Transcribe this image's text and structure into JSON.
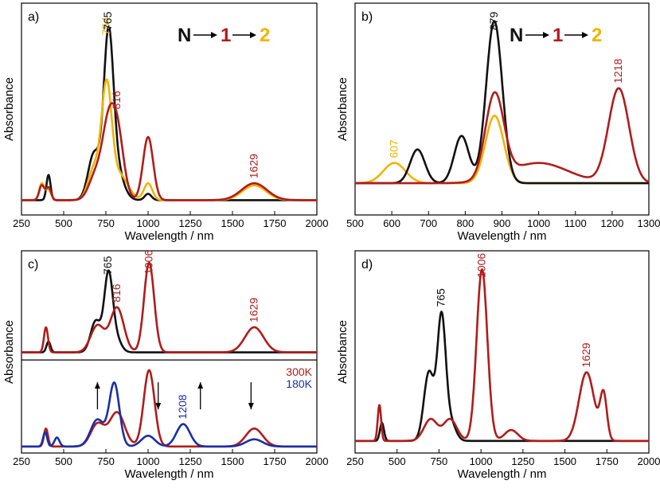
{
  "colors": {
    "N": "#111111",
    "one": "#b01c1c",
    "two": "#f0b400",
    "cold": "#1a2fa6",
    "shade_red": "#f4b8be",
    "shade_pink": "#e8c8dc",
    "shade_cyan": "#bfe9f2"
  },
  "chart_data": [
    {
      "panel": "a)",
      "type": "line",
      "xlabel": "Wavelength / nm",
      "ylabel": "Absorbance",
      "xlim": [
        250,
        2000
      ],
      "xticks": [
        250,
        500,
        750,
        1000,
        1250,
        1500,
        1750,
        2000
      ],
      "ylim": [
        0,
        1
      ],
      "scheme": [
        {
          "text": "N",
          "color": "N"
        },
        {
          "text": "1",
          "color": "one"
        },
        {
          "text": "2",
          "color": "two"
        }
      ],
      "series": [
        {
          "color": "N",
          "peaks": [
            [
              410,
              0.12,
              12
            ],
            [
              680,
              0.22,
              35
            ],
            [
              765,
              0.68,
              28
            ],
            [
              800,
              0.18,
              45
            ],
            [
              1000,
              0.03,
              20
            ]
          ]
        },
        {
          "color": "two",
          "peaks": [
            [
              370,
              0.08,
              15
            ],
            [
              410,
              0.05,
              15
            ],
            [
              680,
              0.15,
              35
            ],
            [
              754,
              0.52,
              30
            ],
            [
              830,
              0.12,
              50
            ],
            [
              1000,
              0.08,
              25
            ],
            [
              1629,
              0.07,
              70
            ]
          ]
        },
        {
          "color": "one",
          "peaks": [
            [
              370,
              0.07,
              15
            ],
            [
              410,
              0.06,
              15
            ],
            [
              690,
              0.12,
              40
            ],
            [
              760,
              0.28,
              35
            ],
            [
              816,
              0.33,
              38
            ],
            [
              1000,
              0.3,
              30
            ],
            [
              1629,
              0.08,
              75
            ]
          ]
        }
      ],
      "peak_labels": [
        {
          "x": 754,
          "text": "754",
          "color": "two"
        },
        {
          "x": 765,
          "text": "765",
          "color": "N"
        },
        {
          "x": 816,
          "text": "816",
          "color": "one"
        },
        {
          "x": 1629,
          "text": "1629",
          "color": "one"
        }
      ]
    },
    {
      "panel": "b)",
      "type": "line",
      "xlabel": "Wavelength / nm",
      "ylabel": "Absorbance",
      "xlim": [
        500,
        1300
      ],
      "xticks": [
        500,
        600,
        700,
        800,
        900,
        1000,
        1100,
        1200,
        1300
      ],
      "ylim": [
        0,
        1
      ],
      "scheme": [
        {
          "text": "N",
          "color": "N"
        },
        {
          "text": "1",
          "color": "one"
        },
        {
          "text": "2",
          "color": "two"
        }
      ],
      "series": [
        {
          "color": "two",
          "peaks": [
            [
              607,
              0.06,
              30
            ],
            [
              880,
              0.2,
              25
            ]
          ]
        },
        {
          "color": "N",
          "peaks": [
            [
              670,
              0.1,
              20
            ],
            [
              790,
              0.14,
              20
            ],
            [
              879,
              0.48,
              22
            ]
          ]
        },
        {
          "color": "one",
          "peaks": [
            [
              880,
              0.25,
              25
            ],
            [
              1000,
              0.06,
              80
            ],
            [
              1218,
              0.28,
              28
            ]
          ]
        }
      ],
      "peak_labels": [
        {
          "x": 607,
          "text": "607",
          "color": "two"
        },
        {
          "x": 879,
          "text": "879",
          "color": "N"
        },
        {
          "x": 1218,
          "text": "1218",
          "color": "one"
        }
      ]
    },
    {
      "panel": "c)",
      "type": "line",
      "xlabel": "Wavelength / nm",
      "ylabel": "Absorbance",
      "xlim": [
        250,
        2000
      ],
      "xticks": [
        250,
        500,
        750,
        1000,
        1250,
        1500,
        1750,
        2000
      ],
      "ylim": [
        0,
        1
      ],
      "legend": [
        {
          "text": "300K",
          "color": "one"
        },
        {
          "text": "180K",
          "color": "cold"
        }
      ],
      "top_series": [
        {
          "color": "N",
          "peaks": [
            [
              410,
              0.12,
              12
            ],
            [
              690,
              0.35,
              30
            ],
            [
              765,
              0.85,
              25
            ],
            [
              810,
              0.15,
              30
            ]
          ]
        },
        {
          "color": "one",
          "peaks": [
            [
              395,
              0.28,
              12
            ],
            [
              700,
              0.3,
              40
            ],
            [
              816,
              0.5,
              40
            ],
            [
              1006,
              1.0,
              30
            ],
            [
              1629,
              0.28,
              55
            ]
          ]
        }
      ],
      "bottom_series": [
        {
          "color": "one",
          "peaks": [
            [
              395,
              0.2,
              12
            ],
            [
              700,
              0.25,
              40
            ],
            [
              816,
              0.38,
              45
            ],
            [
              1006,
              0.85,
              32
            ],
            [
              1629,
              0.2,
              50
            ]
          ]
        },
        {
          "color": "cold",
          "peaks": [
            [
              390,
              0.16,
              12
            ],
            [
              460,
              0.1,
              15
            ],
            [
              700,
              0.3,
              40
            ],
            [
              800,
              0.7,
              30
            ],
            [
              1000,
              0.12,
              40
            ],
            [
              1208,
              0.25,
              40
            ],
            [
              1629,
              0.08,
              50
            ]
          ]
        }
      ],
      "peak_labels": [
        {
          "x": 765,
          "text": "765",
          "color": "N"
        },
        {
          "x": 816,
          "text": "816",
          "color": "one"
        },
        {
          "x": 1006,
          "text": "1006",
          "color": "one"
        },
        {
          "x": 1629,
          "text": "1629",
          "color": "one"
        },
        {
          "x": 1208,
          "text": "1208",
          "color": "cold"
        }
      ],
      "arrows": [
        {
          "x": 700,
          "direction": "up"
        },
        {
          "x": 1060,
          "direction": "down"
        },
        {
          "x": 1310,
          "direction": "up"
        },
        {
          "x": 1610,
          "direction": "down"
        }
      ]
    },
    {
      "panel": "d)",
      "type": "line",
      "xlabel": "Wavelength / nm",
      "ylabel": "Absorbance",
      "xlim": [
        250,
        2000
      ],
      "xticks": [
        250,
        500,
        750,
        1000,
        1250,
        1500,
        1750,
        2000
      ],
      "ylim": [
        0,
        1
      ],
      "series": [
        {
          "color": "N",
          "peaks": [
            [
              410,
              0.1,
              12
            ],
            [
              690,
              0.38,
              30
            ],
            [
              765,
              0.68,
              25
            ],
            [
              820,
              0.1,
              30
            ]
          ]
        },
        {
          "color": "one",
          "peaks": [
            [
              395,
              0.2,
              10
            ],
            [
              700,
              0.12,
              40
            ],
            [
              816,
              0.12,
              40
            ],
            [
              1006,
              0.95,
              32
            ],
            [
              1180,
              0.06,
              40
            ],
            [
              1629,
              0.38,
              45
            ],
            [
              1730,
              0.25,
              20
            ]
          ]
        }
      ],
      "peak_labels": [
        {
          "x": 765,
          "text": "765",
          "color": "N"
        },
        {
          "x": 1006,
          "text": "1006",
          "color": "one"
        },
        {
          "x": 1629,
          "text": "1629",
          "color": "one"
        }
      ]
    }
  ]
}
